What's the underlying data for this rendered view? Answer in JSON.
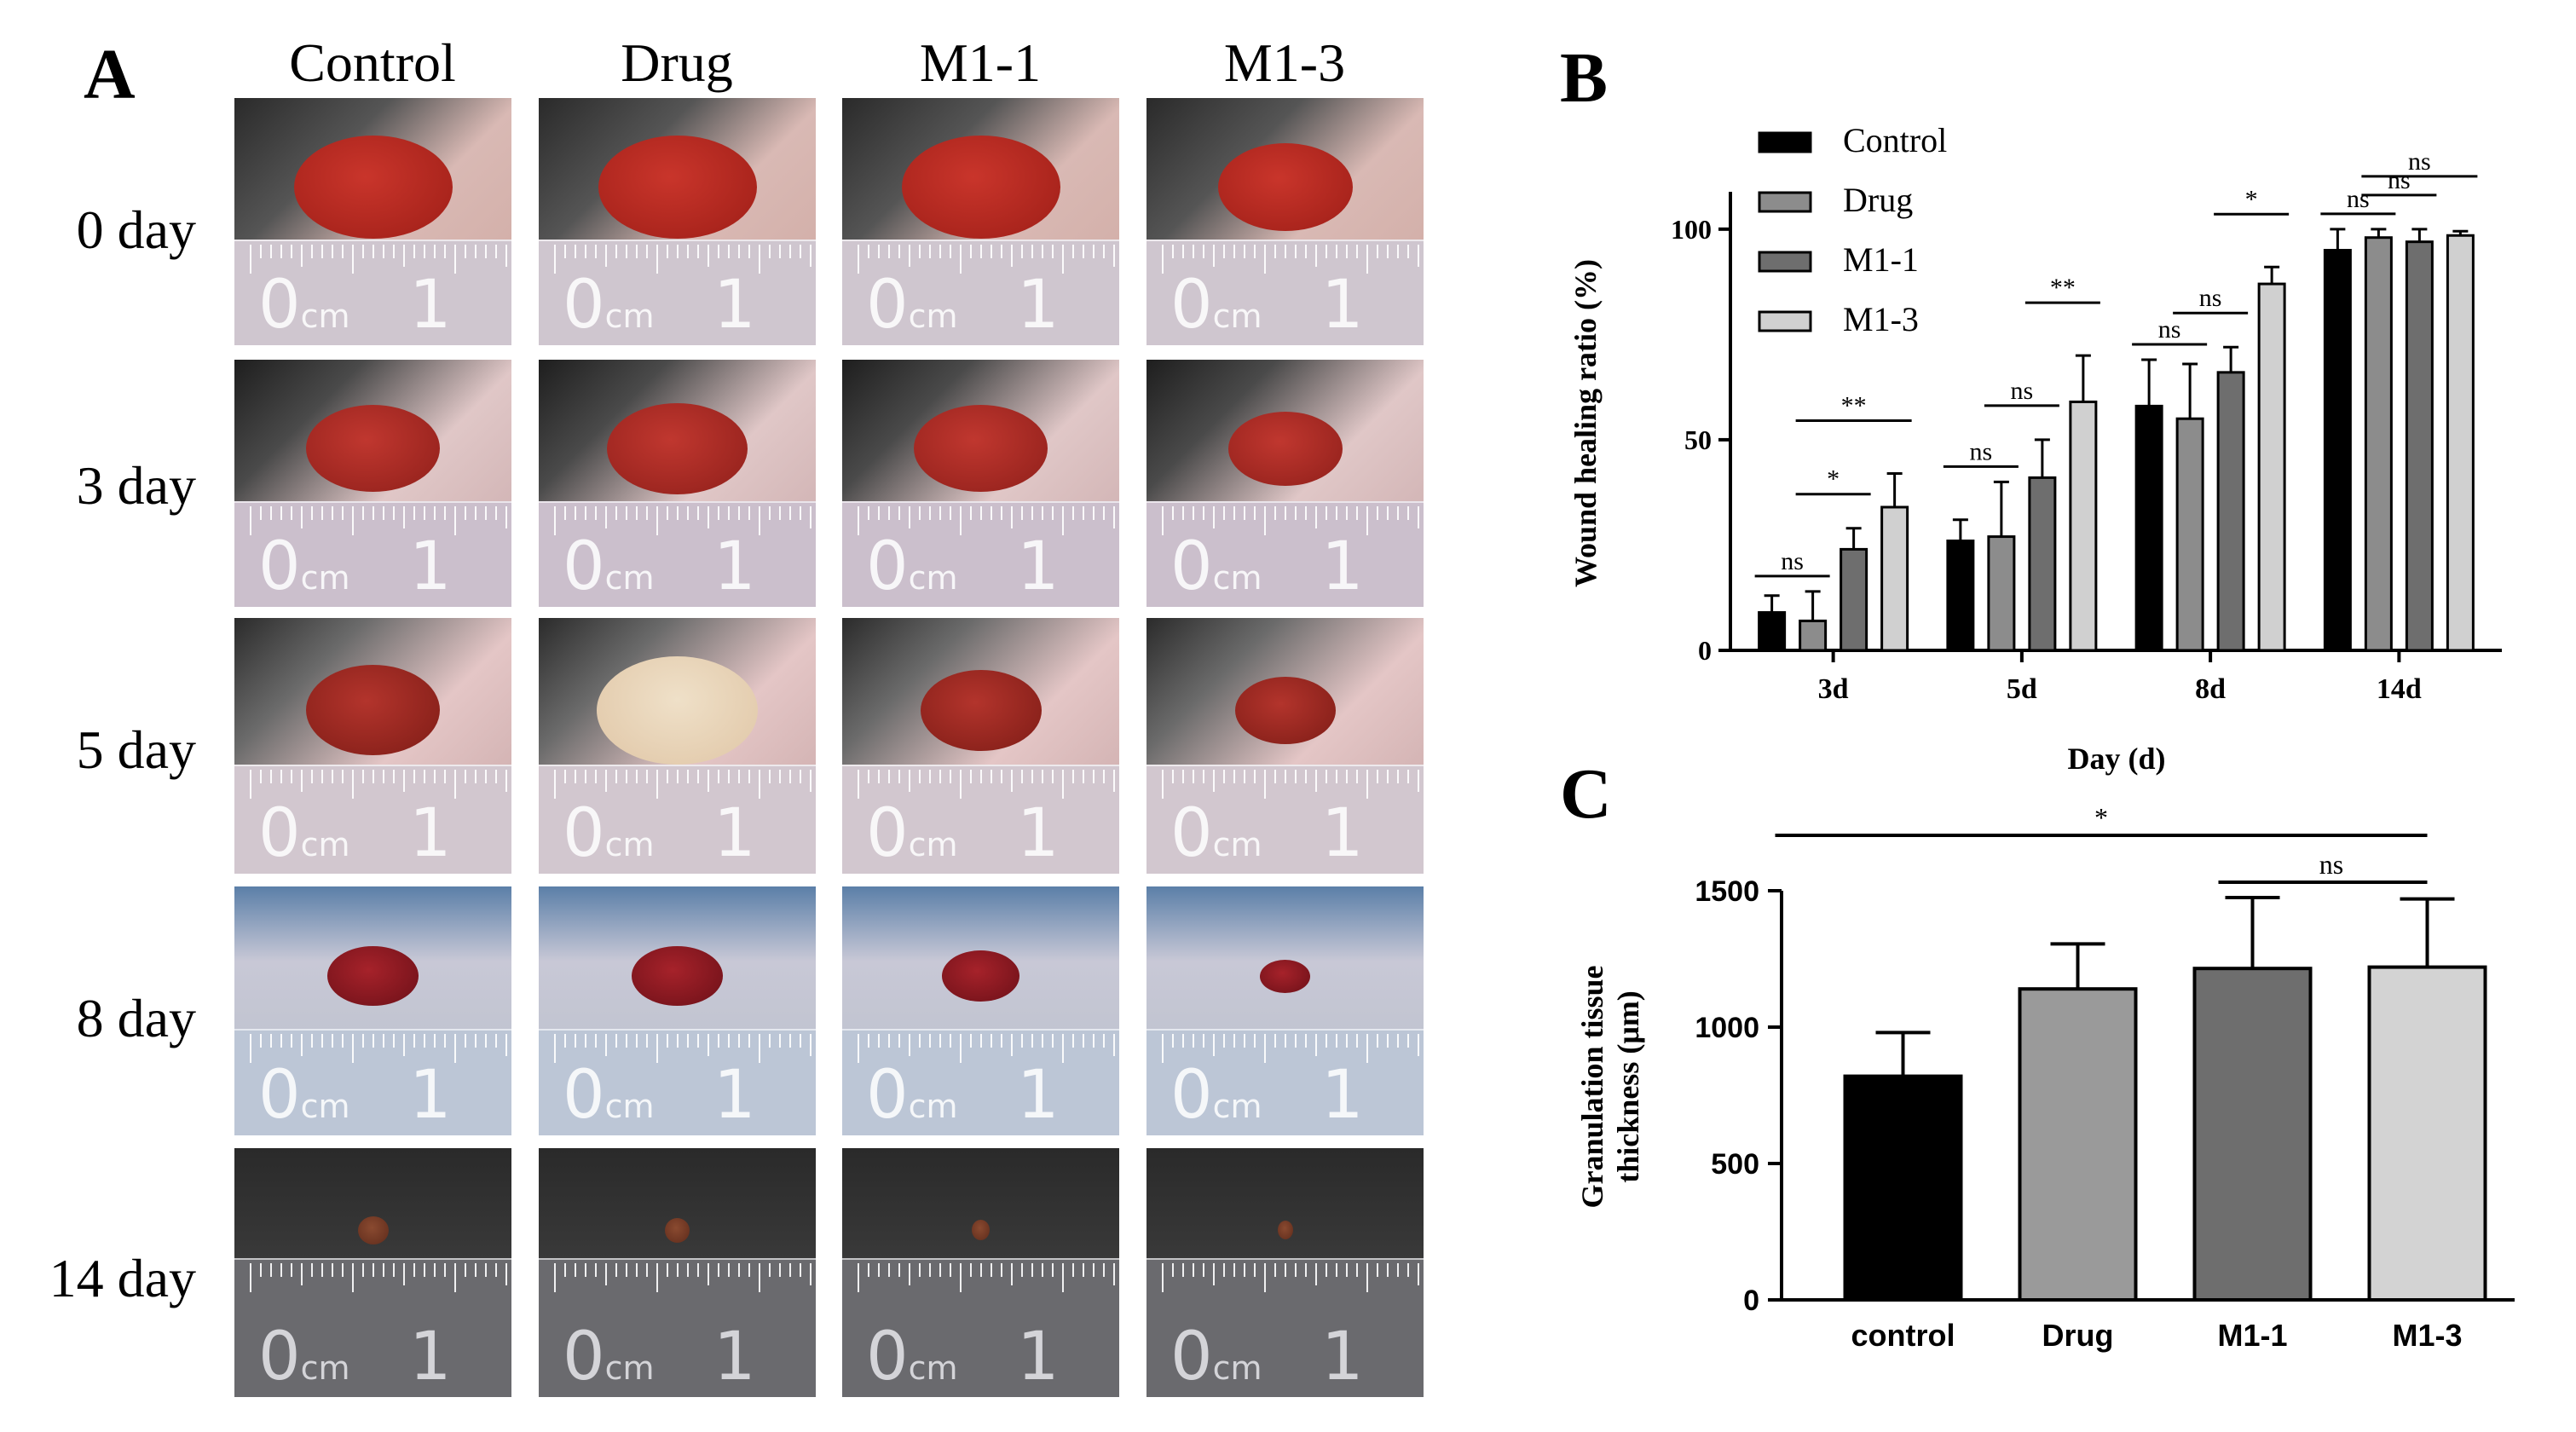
{
  "panel_a": {
    "letter": "A",
    "columns": [
      "Control",
      "Drug",
      "M1-1",
      "M1-3"
    ],
    "rows": [
      "0 day",
      "3 day",
      "5 day",
      "8 day",
      "14 day"
    ],
    "ruler_unit": "cm",
    "ruler_zero": "0",
    "ruler_one": "1"
  },
  "panel_b": {
    "letter": "B"
  },
  "panel_c": {
    "letter": "C"
  },
  "chart_data": [
    {
      "type": "bar",
      "panel": "B",
      "title": "",
      "xlabel": "Day (d)",
      "ylabel": "Wound healing ratio (%)",
      "categories": [
        "3d",
        "5d",
        "8d",
        "14d"
      ],
      "ylim": [
        0,
        120
      ],
      "yticks": [
        0,
        50,
        100
      ],
      "legend_position": "top-left",
      "grid": false,
      "series": [
        {
          "name": "Control",
          "color": "#000000",
          "values": [
            9,
            26,
            58,
            95
          ],
          "errors": [
            4,
            5,
            11,
            5
          ]
        },
        {
          "name": "Drug",
          "color": "#8c8c8c",
          "values": [
            7,
            27,
            55,
            98
          ],
          "errors": [
            7,
            13,
            13,
            2
          ]
        },
        {
          "name": "M1-1",
          "color": "#6e6e6e",
          "values": [
            24,
            41,
            66,
            97
          ],
          "errors": [
            5,
            9,
            6,
            3
          ]
        },
        {
          "name": "M1-3",
          "color": "#d0d0d0",
          "values": [
            34,
            59,
            87,
            98.5
          ],
          "errors": [
            8,
            11,
            4,
            1
          ]
        }
      ],
      "annotations": [
        {
          "category": "3d",
          "from": "Control",
          "to": "Drug",
          "label": "ns"
        },
        {
          "category": "3d",
          "from": "Drug",
          "to": "M1-1",
          "label": "*"
        },
        {
          "category": "3d",
          "from": "Drug",
          "to": "M1-3",
          "label": "**"
        },
        {
          "category": "5d",
          "from": "Control",
          "to": "Drug",
          "label": "ns"
        },
        {
          "category": "5d",
          "from": "Drug",
          "to": "M1-1",
          "label": "ns"
        },
        {
          "category": "5d",
          "from": "M1-1",
          "to": "M1-3",
          "label": "**"
        },
        {
          "category": "8d",
          "from": "Control",
          "to": "Drug",
          "label": "ns"
        },
        {
          "category": "8d",
          "from": "Drug",
          "to": "M1-1",
          "label": "ns"
        },
        {
          "category": "8d",
          "from": "M1-1",
          "to": "M1-3",
          "label": "*"
        },
        {
          "category": "14d",
          "from": "Control",
          "to": "Drug",
          "label": "ns"
        },
        {
          "category": "14d",
          "from": "Drug",
          "to": "M1-1",
          "label": "ns"
        },
        {
          "category": "14d",
          "from": "Drug",
          "to": "M1-3",
          "label": "ns"
        }
      ]
    },
    {
      "type": "bar",
      "panel": "C",
      "title": "",
      "xlabel": "",
      "ylabel": "Granulation tissue thickness (μm)",
      "categories": [
        "control",
        "Drug",
        "M1-1",
        "M1-3"
      ],
      "values": [
        820,
        1140,
        1215,
        1220
      ],
      "errors": [
        160,
        165,
        260,
        250
      ],
      "colors": [
        "#000000",
        "#9a9a9a",
        "#6e6e6e",
        "#d3d3d3"
      ],
      "ylim": [
        0,
        1500
      ],
      "yticks": [
        0,
        500,
        1000,
        1500
      ],
      "grid": false,
      "annotations": [
        {
          "from": "control",
          "to": "M1-3",
          "label": "*"
        },
        {
          "from": "M1-1",
          "to": "M1-3",
          "label": "ns"
        }
      ]
    }
  ]
}
